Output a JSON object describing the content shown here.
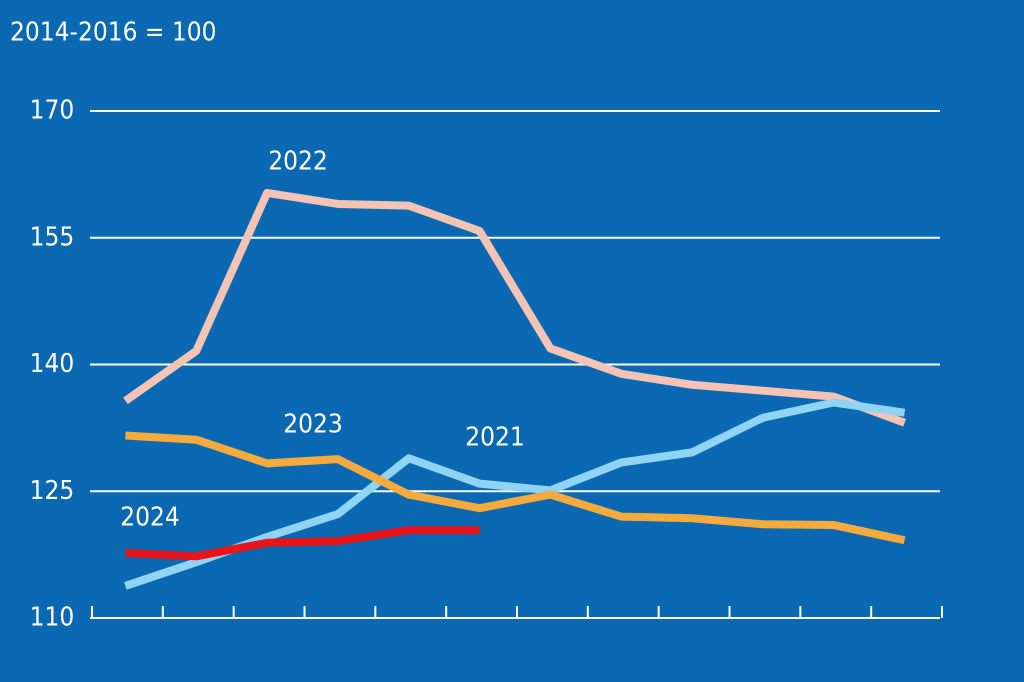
{
  "chart_data": {
    "type": "line",
    "title": "2014-2016 = 100",
    "categories": [
      null,
      null,
      null,
      null,
      null,
      null,
      null,
      null,
      null,
      null,
      null,
      null
    ],
    "series": [
      {
        "name": "2022",
        "color": "#f5c3b3",
        "values": [
          135.7,
          141.6,
          160.3,
          159.0,
          158.8,
          155.8,
          141.9,
          138.9,
          137.6,
          136.9,
          136.2,
          133.1
        ]
      },
      {
        "name": "2021",
        "color": "#8fd4f2",
        "values": [
          113.8,
          116.6,
          119.6,
          122.3,
          128.9,
          125.9,
          125.1,
          128.4,
          129.6,
          133.7,
          135.5,
          134.3
        ]
      },
      {
        "name": "2023",
        "color": "#f5aa3c",
        "values": [
          131.6,
          131.1,
          128.3,
          128.8,
          124.6,
          123.0,
          124.6,
          122.0,
          121.8,
          121.1,
          121.0,
          119.2
        ]
      },
      {
        "name": "2024",
        "color": "#e8151b",
        "values": [
          117.7,
          117.3,
          118.9,
          119.1,
          120.4,
          120.4,
          null,
          null,
          null,
          null,
          null,
          null
        ]
      }
    ],
    "ylim": [
      110,
      170
    ],
    "yticks": [
      110,
      125,
      140,
      155,
      170
    ],
    "grid": true
  }
}
